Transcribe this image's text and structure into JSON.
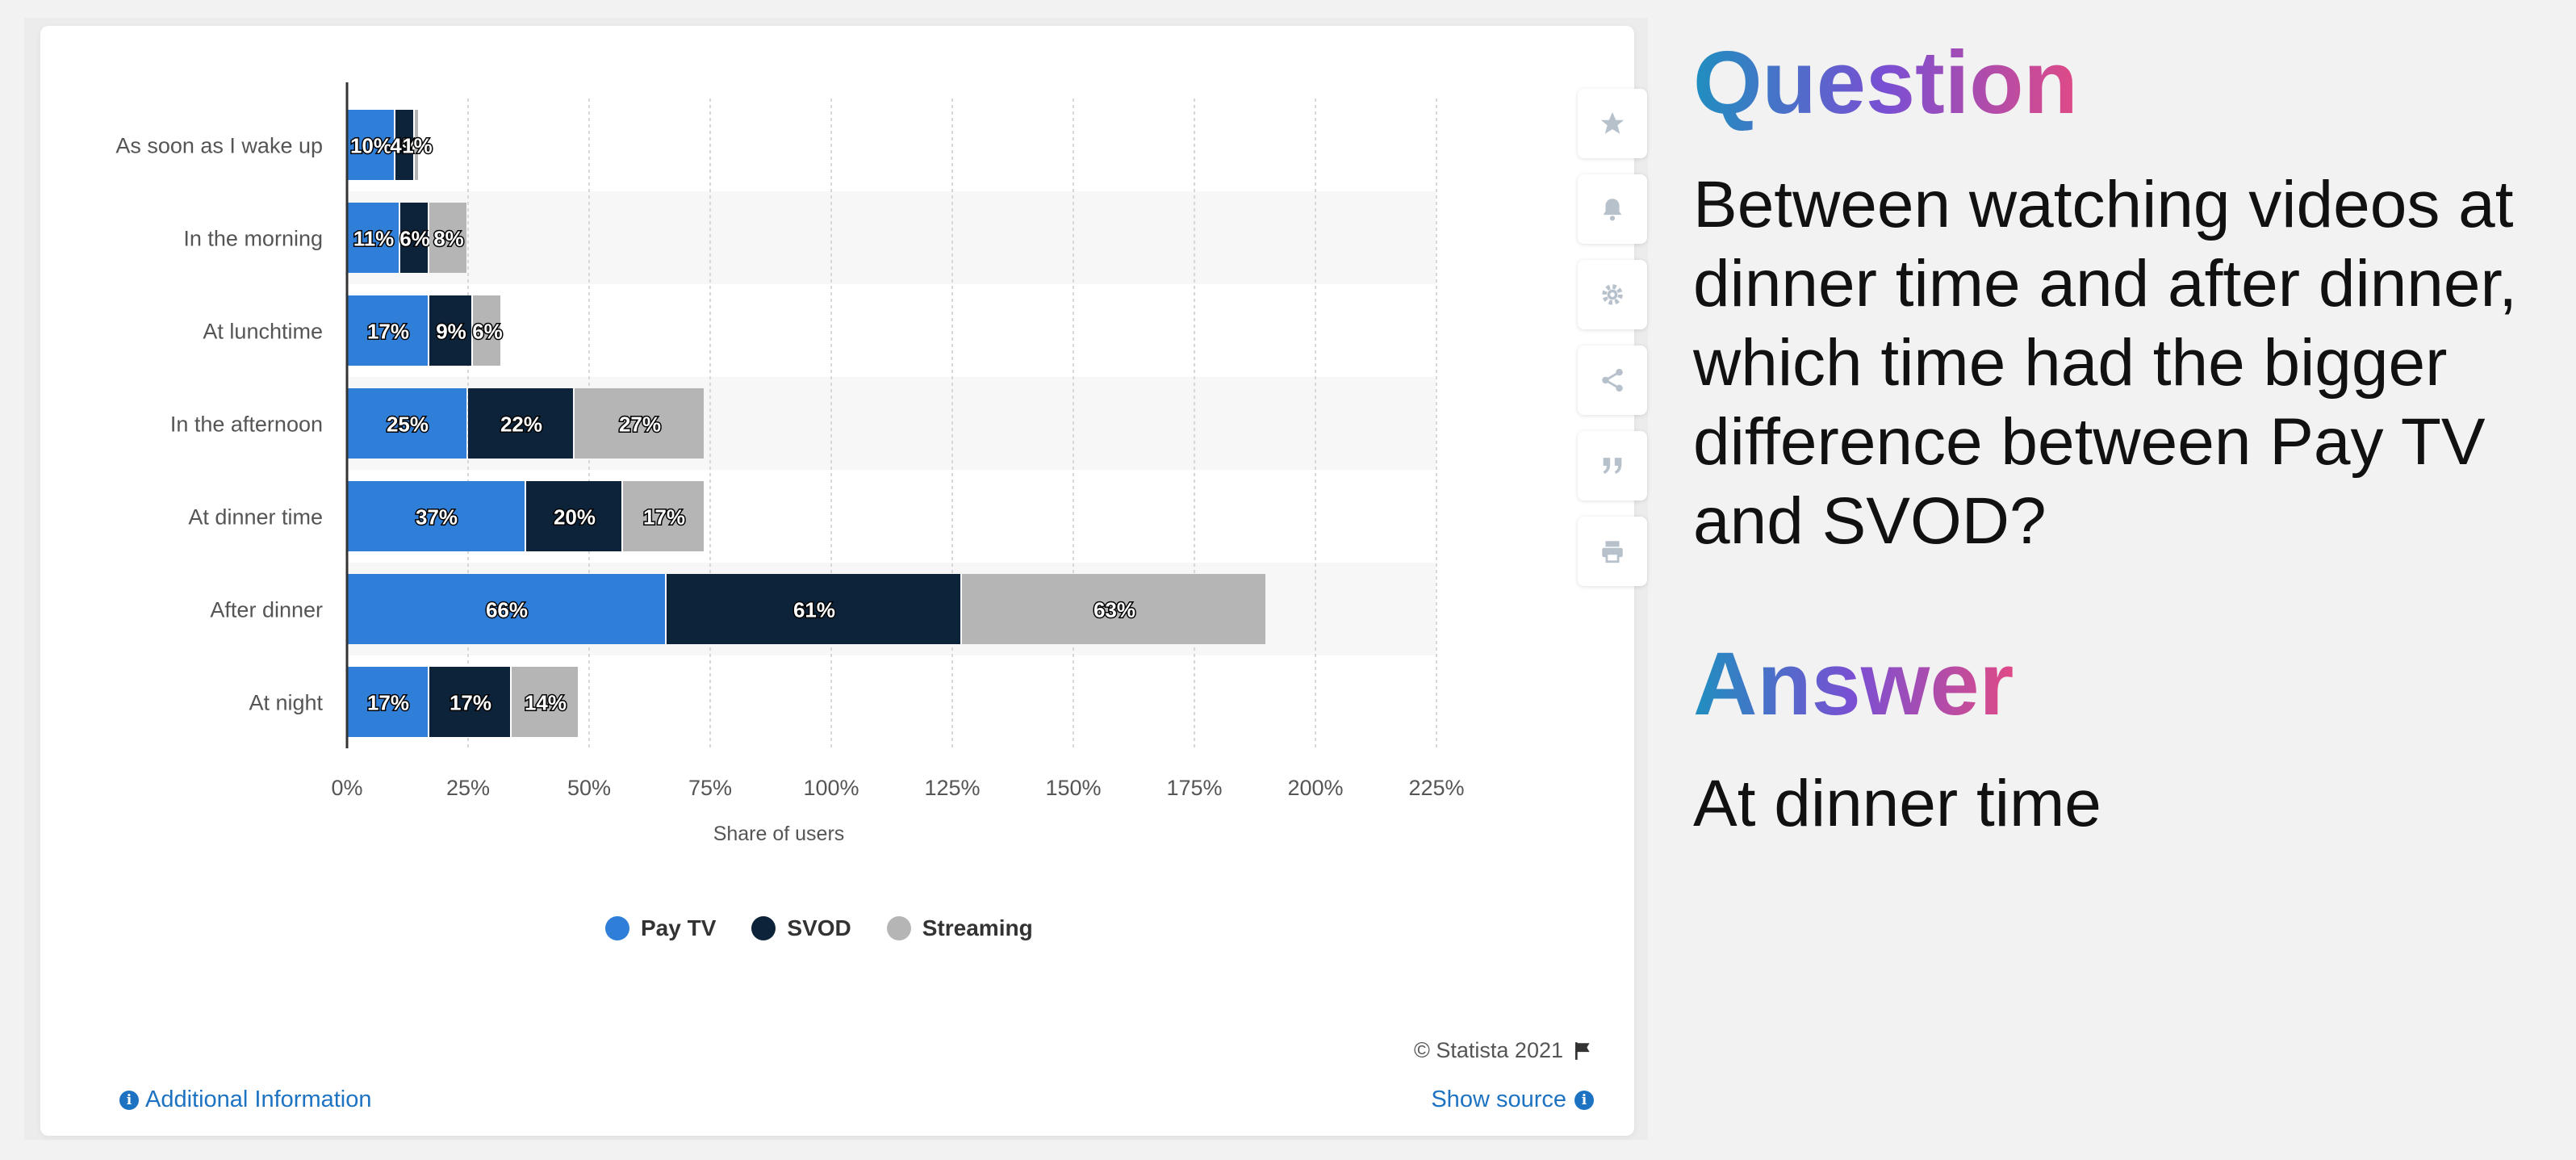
{
  "chart_data": {
    "type": "bar",
    "orientation": "horizontal",
    "stacked": true,
    "categories": [
      "As soon as I wake up",
      "In the morning",
      "At lunchtime",
      "In the afternoon",
      "At dinner time",
      "After dinner",
      "At night"
    ],
    "series": [
      {
        "name": "Pay TV",
        "values": [
          10,
          11,
          17,
          25,
          37,
          66,
          17
        ],
        "labels": [
          "10%",
          "11%",
          "17%",
          "25%",
          "37%",
          "66%",
          "17%"
        ],
        "color": "#2f7ed8"
      },
      {
        "name": "SVOD",
        "values": [
          4,
          6,
          9,
          22,
          20,
          61,
          17
        ],
        "labels": [
          "4%",
          "6%",
          "9%",
          "22%",
          "20%",
          "61%",
          "17%"
        ],
        "color": "#0d233a"
      },
      {
        "name": "Streaming",
        "values": [
          1,
          8,
          6,
          27,
          17,
          63,
          14
        ],
        "labels": [
          "1%",
          "8%",
          "6%",
          "27%",
          "17%",
          "63%",
          "14%"
        ],
        "color": "#b5b5b5"
      }
    ],
    "xlabel": "Share of users",
    "xlim": [
      0,
      225
    ],
    "xticks": [
      "0%",
      "25%",
      "50%",
      "75%",
      "100%",
      "125%",
      "150%",
      "175%",
      "200%",
      "225%"
    ],
    "grid": true,
    "legend_placement": "bottom"
  },
  "toolbar": {
    "icons": [
      "star-icon",
      "bell-icon",
      "gear-icon",
      "share-icon",
      "quote-icon",
      "print-icon"
    ],
    "icon_color": "#b7c1cc"
  },
  "footer": {
    "credit": "© Statista 2021",
    "additional_info": "Additional Information",
    "show_source": "Show source"
  },
  "qa": {
    "question_heading": "Question",
    "question": "Between watching videos at dinner time and after dinner, which time had the bigger difference between Pay TV and SVOD?",
    "answer_heading": "Answer",
    "answer": "At dinner time"
  },
  "colors": {
    "link": "#1d73c2",
    "gradient": [
      "#1f8fbf",
      "#7a4fd3",
      "#e04a86"
    ]
  }
}
